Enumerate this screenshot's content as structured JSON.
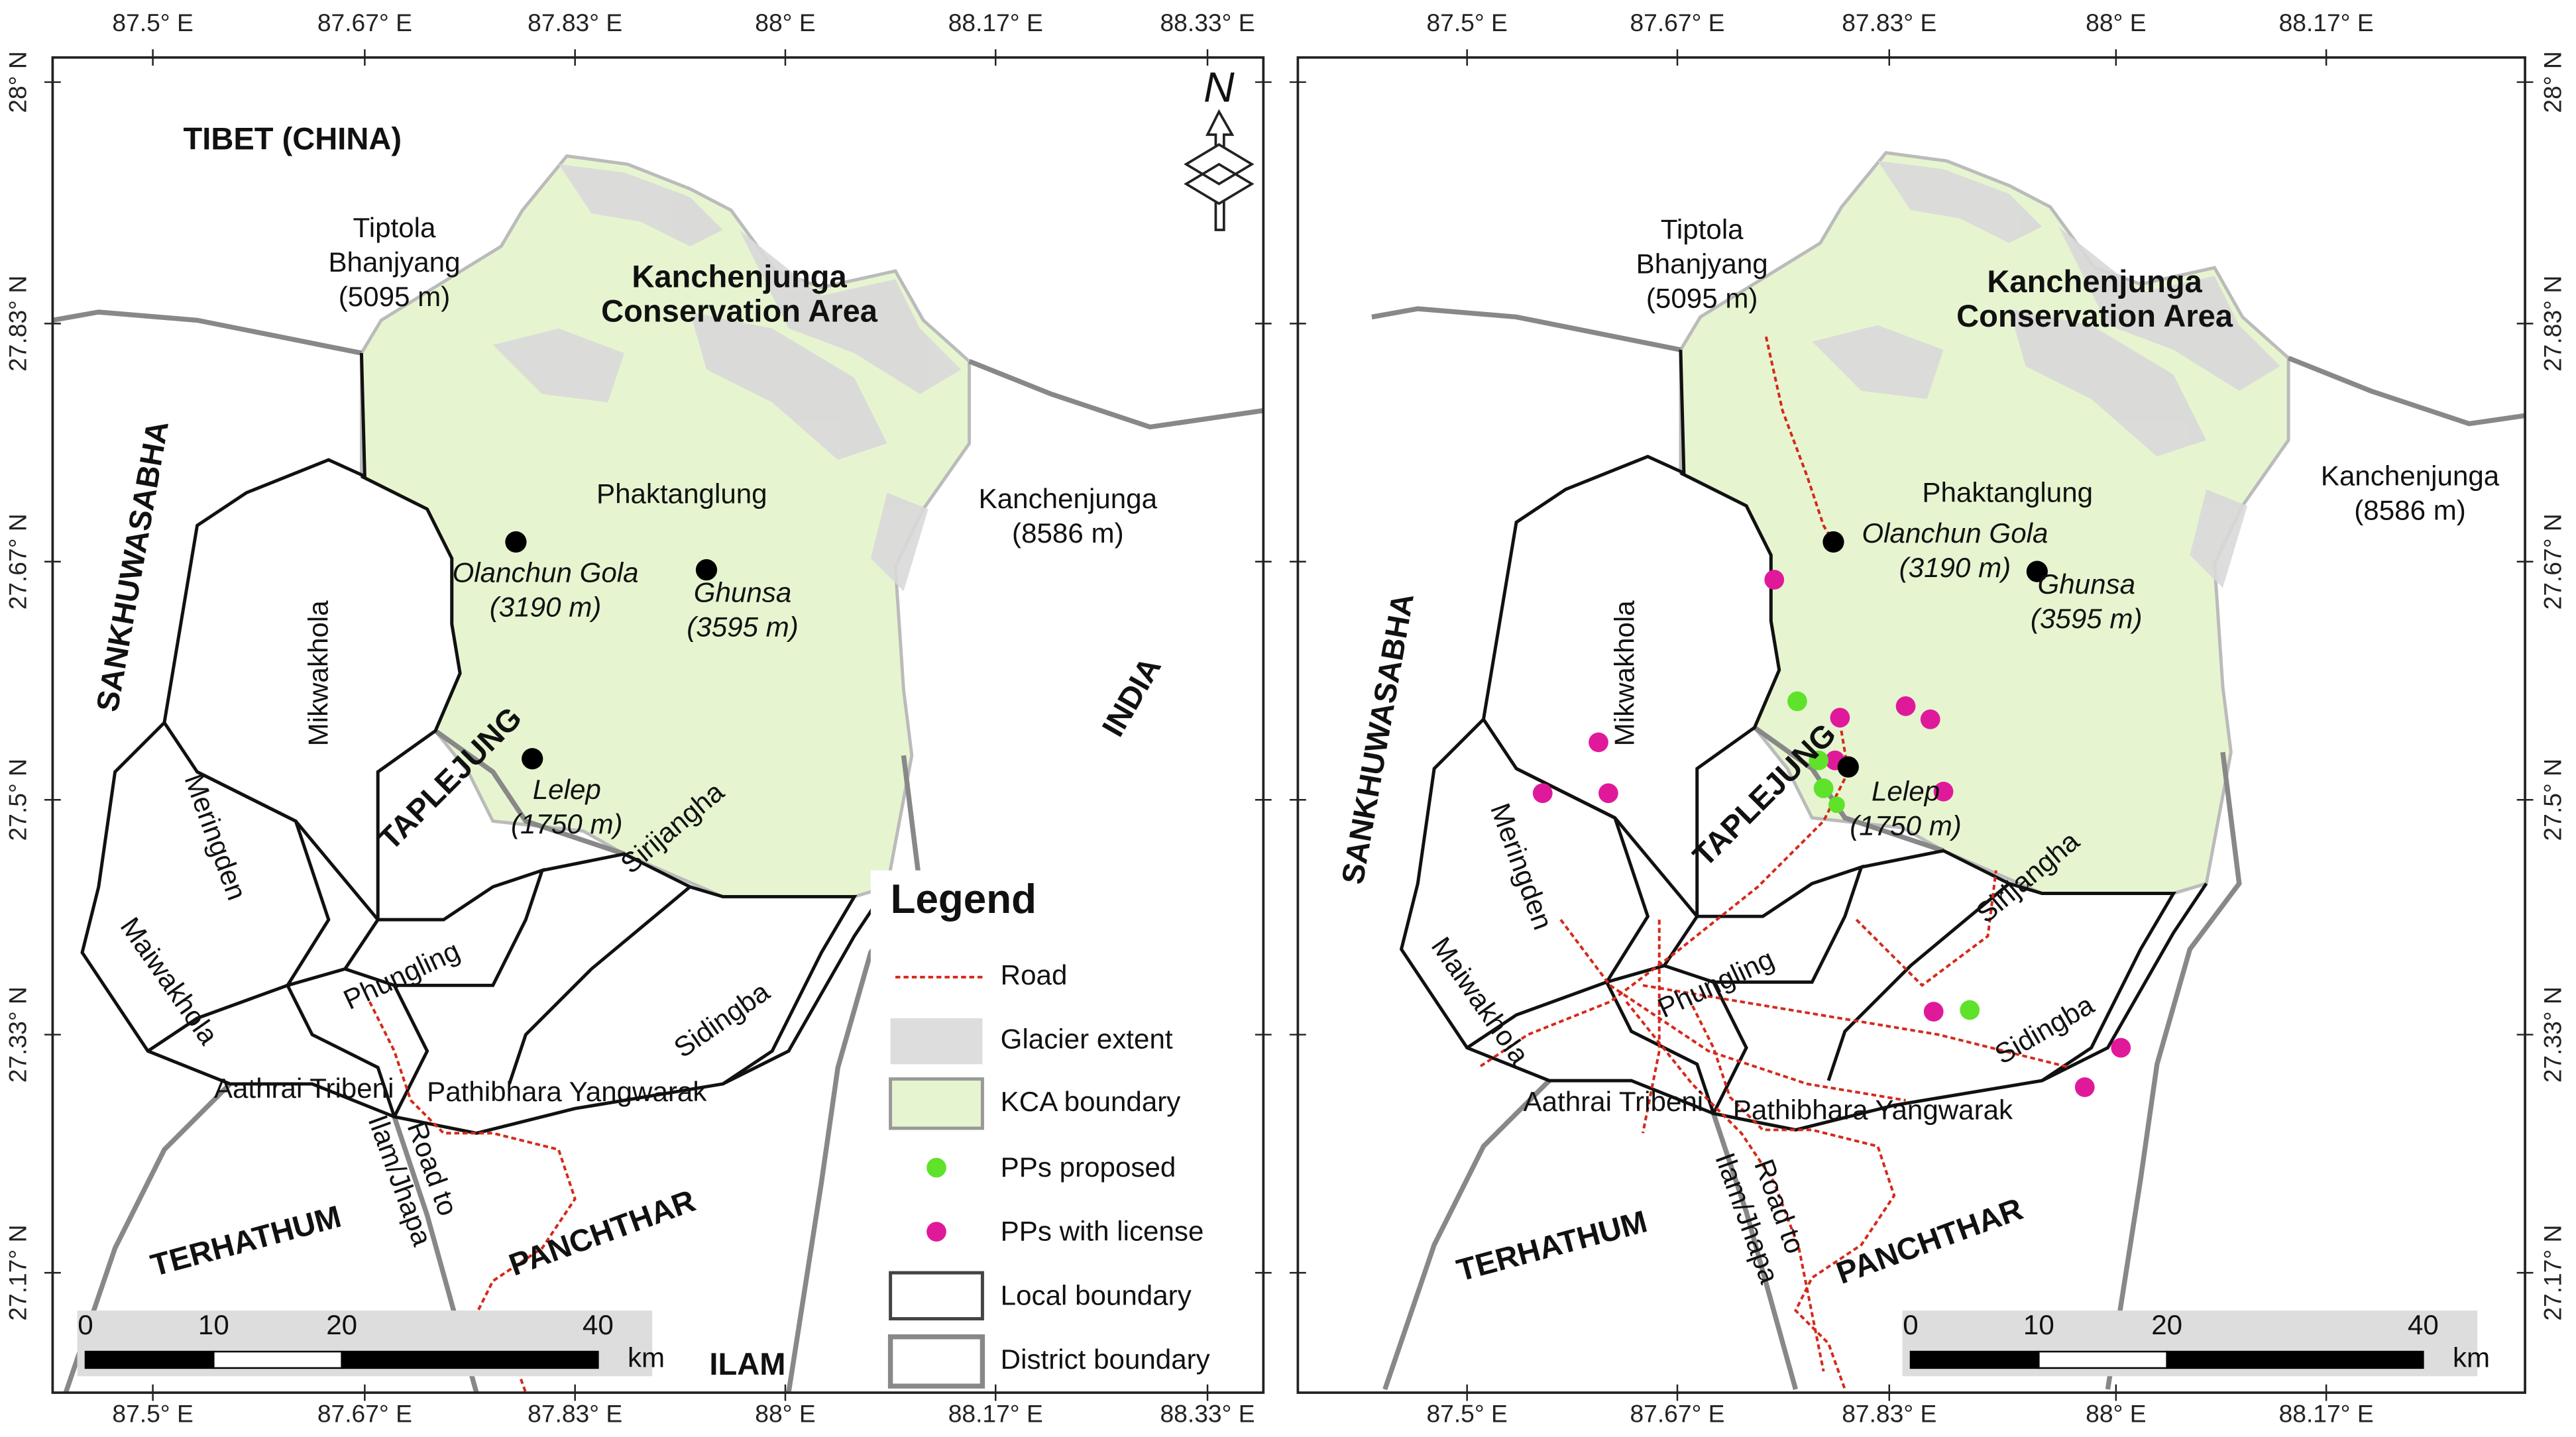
{
  "lon_labels": [
    "87.5° E",
    "87.67° E",
    "87.83° E",
    "88° E",
    "88.17° E",
    "88.33° E"
  ],
  "lat_labels": [
    "28° N",
    "27.83° N",
    "27.67° N",
    "27.5° N",
    "27.33° N",
    "27.17° N"
  ],
  "left_map": {
    "north": "N",
    "labels": {
      "tibet": "TIBET (CHINA)",
      "tiptola": [
        "Tiptola",
        "Bhanjyang",
        "(5095 m)"
      ],
      "kca": [
        "Kanchenjunga",
        "Conservation Area"
      ],
      "phaktanglung": "Phaktanglung",
      "kanchenjunga": [
        "Kanchenjunga",
        "(8586 m)"
      ],
      "olanchun_gola": [
        "Olanchun Gola",
        "(3190 m)"
      ],
      "ghunsa": [
        "Ghunsa",
        "(3595 m)"
      ],
      "lelep": [
        "Lelep",
        "(1750 m)"
      ],
      "sankhuwasabha": "SANKHUWASABHA",
      "mikwakhola": "Mikwakhola",
      "taplejung": "TAPLEJUNG",
      "india": "INDIA",
      "meringden": "Meringden",
      "sirijangha": "Sirijangha",
      "maiwakhola": "Maiwakhola",
      "phungling": "Phungling",
      "sidingba": "Sidingba",
      "aathrai_tribeni": "Aathrai Tribeni",
      "pathibhara_yangwarak": "Pathibhara Yangwarak",
      "road_to": [
        "Road to",
        "Ilam/Jhapa"
      ],
      "terhathum": "TERHATHUM",
      "panchthar": "PANCHTHAR",
      "ilam": "ILAM"
    }
  },
  "right_map": {
    "labels": {
      "tiptola": [
        "Tiptola",
        "Bhanjyang",
        "(5095 m)"
      ],
      "kca": [
        "Kanchenjunga",
        "Conservation Area"
      ],
      "phaktanglung": "Phaktanglung",
      "kanchenjunga": [
        "Kanchenjunga",
        "(8586 m)"
      ],
      "olanchun_gola": [
        "Olanchun Gola",
        "(3190 m)"
      ],
      "ghunsa": [
        "Ghunsa",
        "(3595 m)"
      ],
      "lelep": [
        "Lelep",
        "(1750 m)"
      ],
      "sankhuwasabha": "SANKHUWASABHA",
      "mikwakhola": "Mikwakhola",
      "taplejung": "TAPLEJUNG",
      "meringden": "Meringden",
      "sirijangha": "Sirijangha",
      "maiwakhola": "Maiwakhola",
      "phungling": "Phungling",
      "sidingba": "Sidingba",
      "aathrai_tribeni": "Aathrai Tribeni",
      "pathibhara_yangwarak": "Pathibhara Yangwarak",
      "road_to": [
        "Road to",
        "Ilam/Jhapa"
      ],
      "terhathum": "TERHATHUM",
      "panchthar": "PANCHTHAR"
    }
  },
  "legend": {
    "title": "Legend",
    "items": [
      "Road",
      "Glacier extent",
      "KCA boundary",
      "PPs proposed",
      "PPs with license",
      "Local boundary",
      "District boundary"
    ]
  },
  "scale_bar": {
    "ticks": [
      0,
      10,
      20,
      40
    ],
    "unit": "km"
  }
}
